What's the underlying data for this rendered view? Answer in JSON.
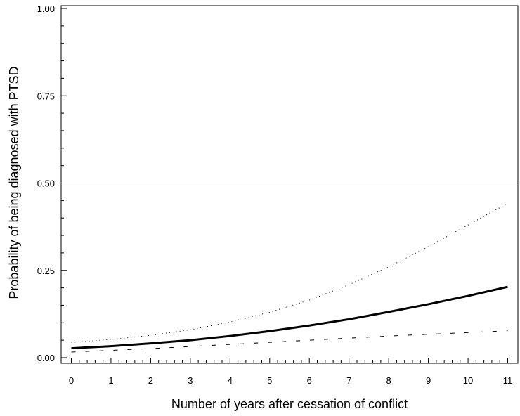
{
  "chart_data": {
    "type": "line",
    "xlabel": "Number of years after cessation of conflict",
    "ylabel": "Probability of being diagnosed with PTSD",
    "xlim": [
      -0.3,
      11.3
    ],
    "ylim": [
      0,
      1
    ],
    "x_ticks": [
      "0",
      "1",
      "2",
      "3",
      "4",
      "5",
      "6",
      "7",
      "8",
      "9",
      "10",
      "11"
    ],
    "x_tick_values": [
      0,
      1,
      2,
      3,
      4,
      5,
      6,
      7,
      8,
      9,
      10,
      11
    ],
    "y_ticks": [
      "0.00",
      "0.25",
      "0.50",
      "0.75",
      "1.00"
    ],
    "y_tick_values": [
      0,
      0.25,
      0.5,
      0.75,
      1.0
    ],
    "reference_line": 0.5,
    "grid": false,
    "x": [
      0,
      1,
      2,
      3,
      4,
      5,
      6,
      7,
      8,
      9,
      10,
      11
    ],
    "series": [
      {
        "style": "solid-thick",
        "color": "#000000",
        "values": [
          0.027,
          0.033,
          0.041,
          0.05,
          0.062,
          0.076,
          0.092,
          0.11,
          0.131,
          0.153,
          0.177,
          0.203
        ]
      },
      {
        "style": "dotted",
        "color": "#000000",
        "values": [
          0.044,
          0.052,
          0.064,
          0.08,
          0.102,
          0.13,
          0.165,
          0.209,
          0.26,
          0.318,
          0.38,
          0.442
        ]
      },
      {
        "style": "dashed",
        "color": "#000000",
        "values": [
          0.016,
          0.021,
          0.026,
          0.032,
          0.038,
          0.044,
          0.05,
          0.056,
          0.062,
          0.067,
          0.072,
          0.077
        ]
      }
    ]
  }
}
